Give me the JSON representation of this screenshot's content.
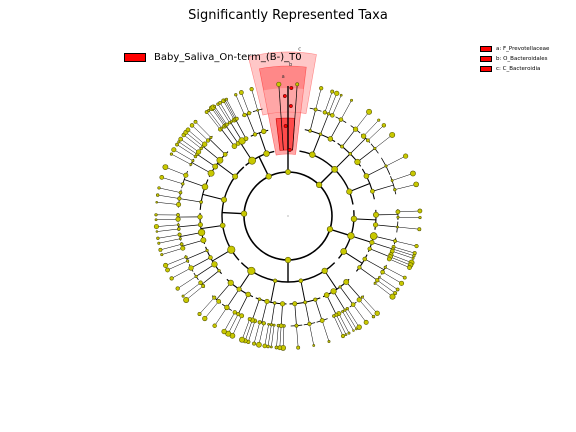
{
  "title": "Significantly Represented Taxa",
  "group_legend": {
    "label": "Baby_Saliva_On-term_(B-)_T0",
    "color": "#ff0000"
  },
  "taxa_legend": [
    {
      "letter": "a",
      "label": "a: F_Prevotellaceae",
      "color": "#ff0000"
    },
    {
      "letter": "b",
      "label": "b: O_Bacteroidales",
      "color": "#ff0000"
    },
    {
      "letter": "c",
      "label": "c: C_Bacteroidia",
      "color": "#ff0000"
    }
  ],
  "colors": {
    "node_fill": "#c8c800",
    "node_stroke": "#555500",
    "highlight": "#ff0000",
    "branch": "#000000"
  }
}
